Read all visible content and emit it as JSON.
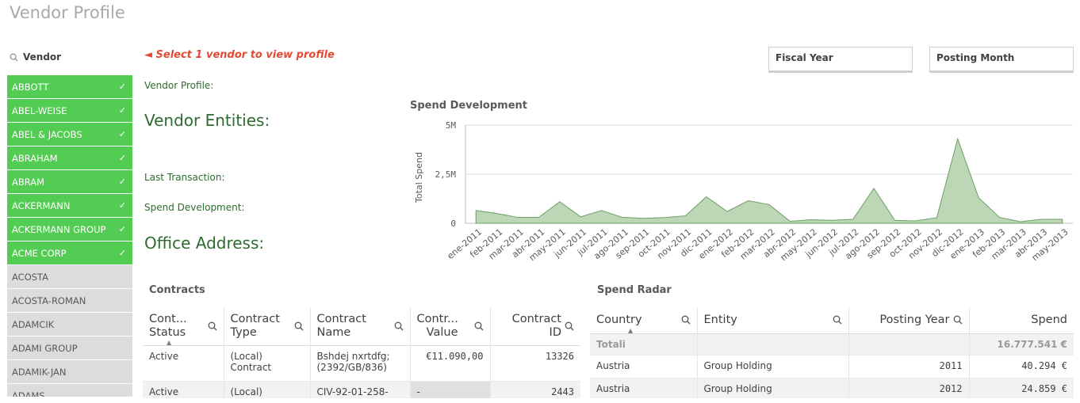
{
  "page": {
    "title": "Vendor Profile"
  },
  "vendor_filter": {
    "label": "Vendor",
    "icon": "search-icon",
    "items": [
      {
        "name": "ABBOTT",
        "selected": true
      },
      {
        "name": "ABEL-WEISE",
        "selected": true
      },
      {
        "name": "ABEL & JACOBS",
        "selected": true
      },
      {
        "name": "ABRAHAM",
        "selected": true
      },
      {
        "name": "ABRAM",
        "selected": true
      },
      {
        "name": "ACKERMANN",
        "selected": true
      },
      {
        "name": "ACKERMANN GROUP",
        "selected": true
      },
      {
        "name": "ACME CORP",
        "selected": true
      },
      {
        "name": "ACOSTA",
        "selected": false
      },
      {
        "name": "ACOSTA-ROMAN",
        "selected": false
      },
      {
        "name": "ADAMCIK",
        "selected": false
      },
      {
        "name": "ADAMI GROUP",
        "selected": false
      },
      {
        "name": "ADAMIK-JAN",
        "selected": false
      },
      {
        "name": "ADAMS",
        "selected": false
      }
    ]
  },
  "profile": {
    "hint": "◄ Select 1 vendor to view profile",
    "vendor_profile_label": "Vendor Profile:",
    "vendor_entities_label": "Vendor Entities:",
    "last_transaction_label": "Last Transaction:",
    "spend_development_label": "Spend Development:",
    "office_address_label": "Office Address:"
  },
  "filters": {
    "fiscal_year": "Fiscal Year",
    "posting_month": "Posting Month"
  },
  "colors": {
    "selected_green": "#52cc52",
    "area_fill": "#bcd6b6",
    "area_stroke": "#6e9e68",
    "hint_red": "#e34a33"
  },
  "chart_data": {
    "type": "area",
    "title": "Spend Development",
    "ylabel": "Total Spend",
    "xlabel": "",
    "ylim": [
      0,
      5000000
    ],
    "yticks": [
      0,
      2500000,
      5000000
    ],
    "ytick_labels": [
      "0",
      "2,5M",
      "5M"
    ],
    "grid": true,
    "categories": [
      "ene-2011",
      "feb-2011",
      "mar-2011",
      "abr-2011",
      "may-2011",
      "jun-2011",
      "jul-2011",
      "ago-2011",
      "sep-2011",
      "oct-2011",
      "nov-2011",
      "dic-2011",
      "ene-2012",
      "feb-2012",
      "mar-2012",
      "abr-2012",
      "may-2012",
      "jun-2012",
      "jul-2012",
      "ago-2012",
      "sep-2012",
      "oct-2012",
      "nov-2012",
      "dic-2012",
      "ene-2013",
      "feb-2013",
      "mar-2013",
      "abr-2013",
      "may-2013"
    ],
    "values": [
      650000,
      500000,
      300000,
      300000,
      1100000,
      330000,
      650000,
      300000,
      250000,
      290000,
      380000,
      1350000,
      600000,
      1150000,
      950000,
      100000,
      180000,
      150000,
      200000,
      1780000,
      150000,
      120000,
      280000,
      4300000,
      1300000,
      300000,
      80000,
      200000,
      200000
    ]
  },
  "contracts": {
    "title": "Contracts",
    "columns": [
      "Cont... Status",
      "Contract Type",
      "Contract Name",
      "Contr... Value",
      "Contract ID"
    ],
    "rows": [
      [
        "Active",
        "(Local) Contract",
        "Bshdej nxrtdfg; (2392/GB/836)",
        "€11.090,00",
        "13326"
      ],
      [
        "Active",
        "(Local) Contract",
        "CIV-92-01-258-",
        "-",
        "2443"
      ]
    ]
  },
  "spend_radar": {
    "title": "Spend Radar",
    "columns": [
      "Country",
      "Entity",
      "Posting Year",
      "Spend"
    ],
    "total_label": "Totali",
    "total_value": "16.777.541 €",
    "rows": [
      [
        "Austria",
        "Group Holding",
        "2011",
        "40.294 €"
      ],
      [
        "Austria",
        "Group Holding",
        "2012",
        "24.859 €"
      ]
    ]
  }
}
